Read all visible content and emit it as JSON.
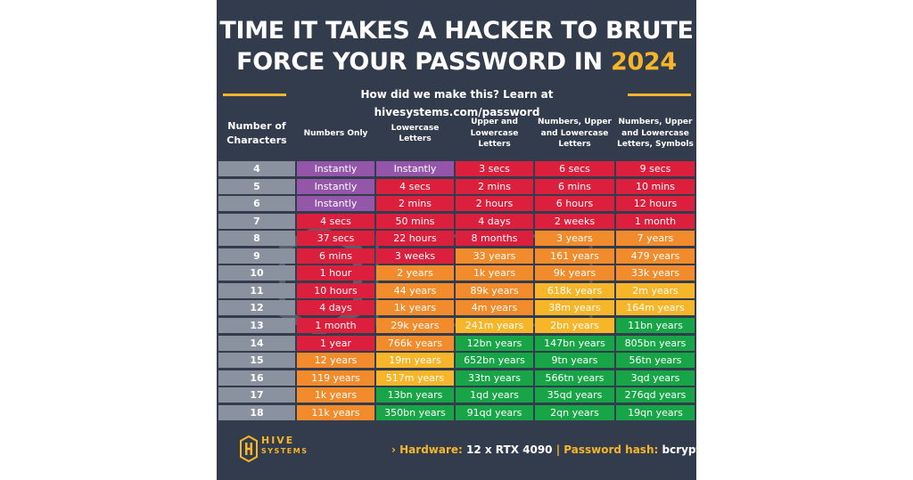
{
  "title": {
    "line1": "TIME IT TAKES A HACKER TO BRUTE",
    "line2_prefix": "FORCE YOUR PASSWORD IN ",
    "line2_year": "2024"
  },
  "subtitle": "How did we make this? Learn at hivesystems.com/password",
  "headers": [
    "Number of Characters",
    "Numbers Only",
    "Lowercase Letters",
    "Upper and Lowercase Letters",
    "Numbers, Upper and Lowercase Letters",
    "Numbers, Upper and Lowercase Letters, Symbols"
  ],
  "rows": [
    {
      "chars": "4",
      "cells": [
        "Instantly",
        "Instantly",
        "3 secs",
        "6 secs",
        "9 secs"
      ]
    },
    {
      "chars": "5",
      "cells": [
        "Instantly",
        "4 secs",
        "2 mins",
        "6 mins",
        "10 mins"
      ]
    },
    {
      "chars": "6",
      "cells": [
        "Instantly",
        "2 mins",
        "2 hours",
        "6 hours",
        "12 hours"
      ]
    },
    {
      "chars": "7",
      "cells": [
        "4 secs",
        "50 mins",
        "4 days",
        "2 weeks",
        "1 month"
      ]
    },
    {
      "chars": "8",
      "cells": [
        "37 secs",
        "22 hours",
        "8 months",
        "3 years",
        "7 years"
      ]
    },
    {
      "chars": "9",
      "cells": [
        "6 mins",
        "3 weeks",
        "33 years",
        "161 years",
        "479 years"
      ]
    },
    {
      "chars": "10",
      "cells": [
        "1 hour",
        "2 years",
        "1k years",
        "9k years",
        "33k years"
      ]
    },
    {
      "chars": "11",
      "cells": [
        "10 hours",
        "44 years",
        "89k years",
        "618k years",
        "2m years"
      ]
    },
    {
      "chars": "12",
      "cells": [
        "4 days",
        "1k years",
        "4m years",
        "38m years",
        "164m years"
      ]
    },
    {
      "chars": "13",
      "cells": [
        "1 month",
        "29k years",
        "241m years",
        "2bn years",
        "11bn years"
      ]
    },
    {
      "chars": "14",
      "cells": [
        "1 year",
        "766k years",
        "12bn years",
        "147bn years",
        "805bn years"
      ]
    },
    {
      "chars": "15",
      "cells": [
        "12 years",
        "19m years",
        "652bn years",
        "9tn years",
        "56tn years"
      ]
    },
    {
      "chars": "16",
      "cells": [
        "119 years",
        "517m years",
        "33tn years",
        "566tn years",
        "3qd years"
      ]
    },
    {
      "chars": "17",
      "cells": [
        "1k years",
        "13bn years",
        "1qd years",
        "35qd years",
        "276qd years"
      ]
    },
    {
      "chars": "18",
      "cells": [
        "11k years",
        "350bn years",
        "91qd years",
        "2qn years",
        "19qn years"
      ]
    }
  ],
  "cell_colors": [
    [
      "purple",
      "purple",
      "red",
      "red",
      "red"
    ],
    [
      "purple",
      "red",
      "red",
      "red",
      "red"
    ],
    [
      "purple",
      "red",
      "red",
      "red",
      "red"
    ],
    [
      "red",
      "red",
      "red",
      "red",
      "red"
    ],
    [
      "red",
      "red",
      "red",
      "orange",
      "orange"
    ],
    [
      "red",
      "red",
      "orange",
      "orange",
      "orange"
    ],
    [
      "red",
      "orange",
      "orange",
      "orange",
      "orange"
    ],
    [
      "red",
      "orange",
      "orange",
      "yellow",
      "yellow"
    ],
    [
      "red",
      "orange",
      "orange",
      "yellow",
      "yellow"
    ],
    [
      "red",
      "orange",
      "yellow",
      "yellow",
      "green"
    ],
    [
      "red",
      "orange",
      "green",
      "green",
      "green"
    ],
    [
      "orange",
      "yellow",
      "green",
      "green",
      "green"
    ],
    [
      "orange",
      "yellow",
      "green",
      "green",
      "green"
    ],
    [
      "orange",
      "green",
      "green",
      "green",
      "green"
    ],
    [
      "orange",
      "green",
      "green",
      "green",
      "green"
    ]
  ],
  "colors": {
    "purple": "#9356a9",
    "red": "#dc1f3c",
    "orange": "#f18b2b",
    "yellow": "#f7b62a",
    "green": "#17a548",
    "number": "#8a929f",
    "background": "#323c4d",
    "accent": "#f7b62a"
  },
  "logo": {
    "line1": "HIVE",
    "line2": "SYSTEMS",
    "icon": "hive-logo-icon"
  },
  "footer": {
    "arrow": "›",
    "hardware_label": "Hardware:",
    "hardware_value": "12 x RTX 4090",
    "separator": "|",
    "hash_label": "Password hash:",
    "hash_value": "bcrypt"
  }
}
